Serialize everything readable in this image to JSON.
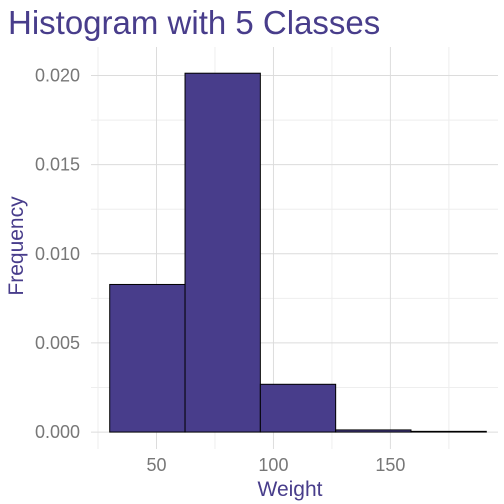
{
  "chart_data": {
    "type": "bar",
    "title": "Histogram with 5 Classes",
    "xlabel": "Weight",
    "ylabel": "Frequency",
    "bins": [
      {
        "x0": 30.0,
        "x1": 62.2,
        "value": 0.00828
      },
      {
        "x0": 62.2,
        "x1": 94.4,
        "value": 0.02013
      },
      {
        "x0": 94.4,
        "x1": 126.6,
        "value": 0.00268
      },
      {
        "x0": 126.6,
        "x1": 158.8,
        "value": 0.00012
      },
      {
        "x0": 158.8,
        "x1": 191.0,
        "value": 4e-05
      }
    ],
    "xlim": [
      22,
      196
    ],
    "ylim": [
      -0.00095,
      0.0216
    ],
    "x_ticks": [
      50,
      100,
      150
    ],
    "x_tick_labels": [
      "50",
      "100",
      "150"
    ],
    "y_ticks": [
      0,
      0.005,
      0.01,
      0.015,
      0.02
    ],
    "y_tick_labels": [
      "0.000",
      "0.005",
      "0.010",
      "0.015",
      "0.020"
    ],
    "grid": true,
    "legend": "none",
    "colors": {
      "bar_fill": "#483D8B",
      "bar_stroke": "#000000",
      "title": "#483D8B",
      "tick_labels": "#777777"
    }
  }
}
